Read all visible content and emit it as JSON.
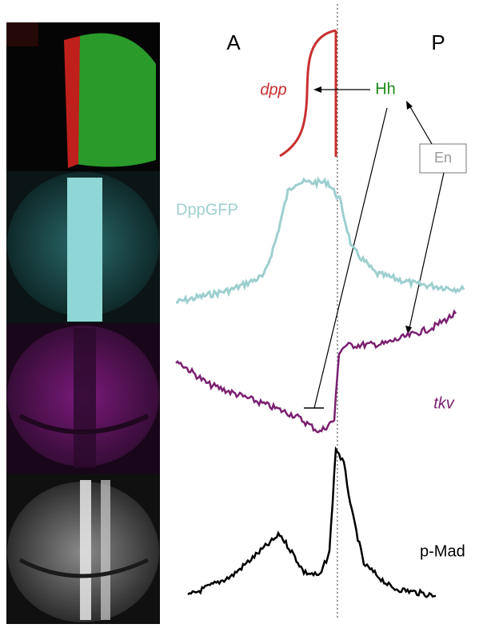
{
  "labels": {
    "anterior": "A",
    "posterior": "P",
    "dpp": "dpp",
    "hh": "Hh",
    "en": "En",
    "dppgfp": "DppGFP",
    "tkv": "tkv",
    "pmad": "p-Mad"
  }
}
